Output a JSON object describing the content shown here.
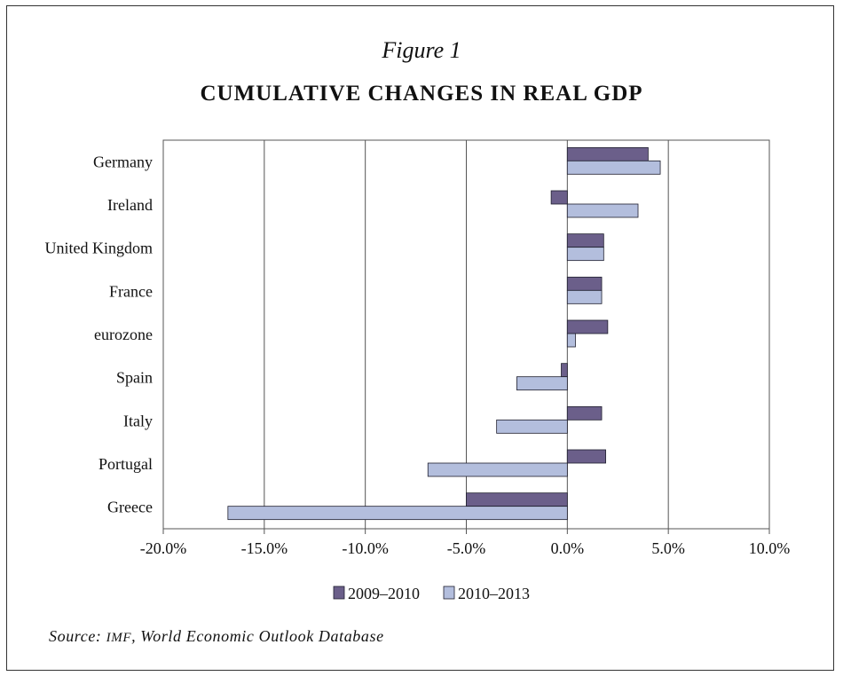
{
  "figure_label": "Figure 1",
  "source": {
    "prefix": "Source:",
    "abbr": "IMF",
    "rest": ", World Economic Outlook Database"
  },
  "colors": {
    "series_2009_2010": "#6b5f8a",
    "series_2010_2013": "#b3bedd",
    "bar_stroke": "#1f1f2e",
    "gridline": "#555555"
  },
  "chart_data": {
    "type": "bar",
    "orientation": "horizontal",
    "title": "CUMULATIVE CHANGES IN REAL GDP",
    "xlabel": "",
    "ylabel": "",
    "xlim": [
      -20,
      10
    ],
    "xticks": [
      -20,
      -15,
      -10,
      -5,
      0,
      5,
      10
    ],
    "xtick_labels": [
      "-20.0%",
      "-15.0%",
      "-10.0%",
      "-5.0%",
      "0.0%",
      "5.0%",
      "10.0%"
    ],
    "grid": true,
    "legend_position": "bottom-center",
    "categories": [
      "Germany",
      "Ireland",
      "United Kingdom",
      "France",
      "eurozone",
      "Spain",
      "Italy",
      "Portugal",
      "Greece"
    ],
    "series": [
      {
        "name": "2009–2010",
        "values": [
          4.0,
          -0.8,
          1.8,
          1.7,
          2.0,
          -0.3,
          1.7,
          1.9,
          -5.0
        ]
      },
      {
        "name": "2010–2013",
        "values": [
          4.6,
          3.5,
          1.8,
          1.7,
          0.4,
          -2.5,
          -3.5,
          -6.9,
          -16.8
        ]
      }
    ]
  }
}
